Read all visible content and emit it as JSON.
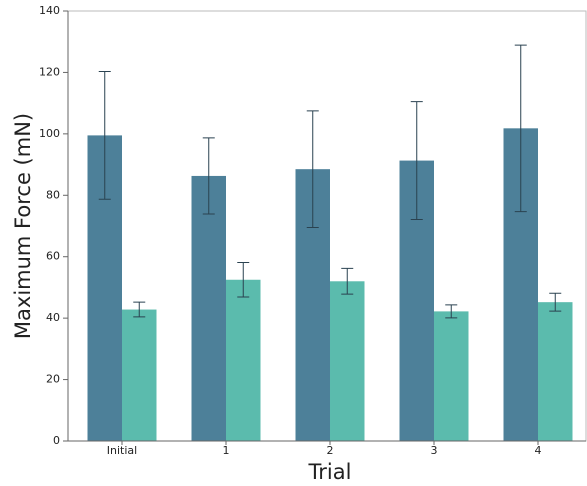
{
  "chart_data": {
    "type": "bar",
    "x_label": "Trial",
    "y_label": "Maximum Force (mN)",
    "categories": [
      "Initial",
      "1",
      "2",
      "3",
      "4"
    ],
    "series": [
      {
        "color": "#4d8099",
        "values": [
          99.5,
          86.3,
          88.5,
          91.3,
          101.8
        ],
        "errors": [
          20.8,
          12.4,
          19,
          19.2,
          27.1
        ]
      },
      {
        "color": "#5bbbad",
        "values": [
          42.8,
          52.5,
          52,
          42.2,
          45.2
        ],
        "errors": [
          2.4,
          5.6,
          4.2,
          2.1,
          2.9
        ]
      }
    ],
    "ylim": [
      0,
      140
    ],
    "yticks": [
      0,
      20,
      40,
      60,
      80,
      100,
      120,
      140
    ],
    "grid": false
  }
}
